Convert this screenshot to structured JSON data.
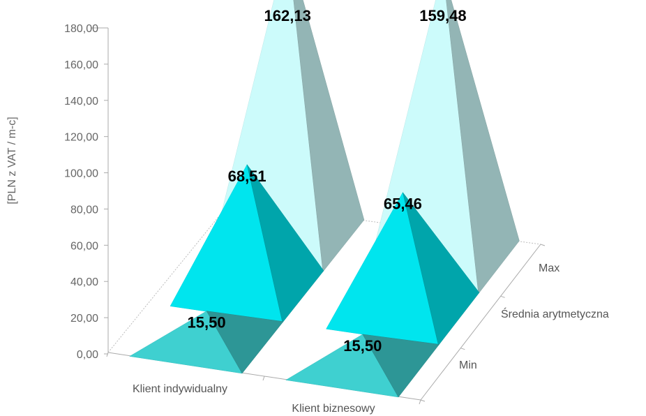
{
  "chart_data": {
    "type": "bar",
    "style": "3d-pyramid",
    "categories": [
      "Klient indywidualny",
      "Klient biznesowy"
    ],
    "series": [
      {
        "name": "Min",
        "values": [
          15.5,
          15.5
        ],
        "color": "#3fd0d0"
      },
      {
        "name": "Średnia arytmetyczna",
        "values": [
          68.51,
          65.46
        ],
        "color": "#00e5ee"
      },
      {
        "name": "Max",
        "values": [
          162.13,
          159.48
        ],
        "color": "#ccfbfb"
      }
    ],
    "data_labels": {
      "Min": [
        "15,50",
        "15,50"
      ],
      "Średnia arytmetyczna": [
        "68,51",
        "65,46"
      ],
      "Max": [
        "162,13",
        "159,48"
      ]
    },
    "ylabel": "[PLN z VAT / m-c]",
    "ylim": [
      0,
      180
    ],
    "yticks": [
      "0,00",
      "20,00",
      "40,00",
      "60,00",
      "80,00",
      "100,00",
      "120,00",
      "140,00",
      "160,00",
      "180,00"
    ],
    "grid": false,
    "legend": "none"
  }
}
